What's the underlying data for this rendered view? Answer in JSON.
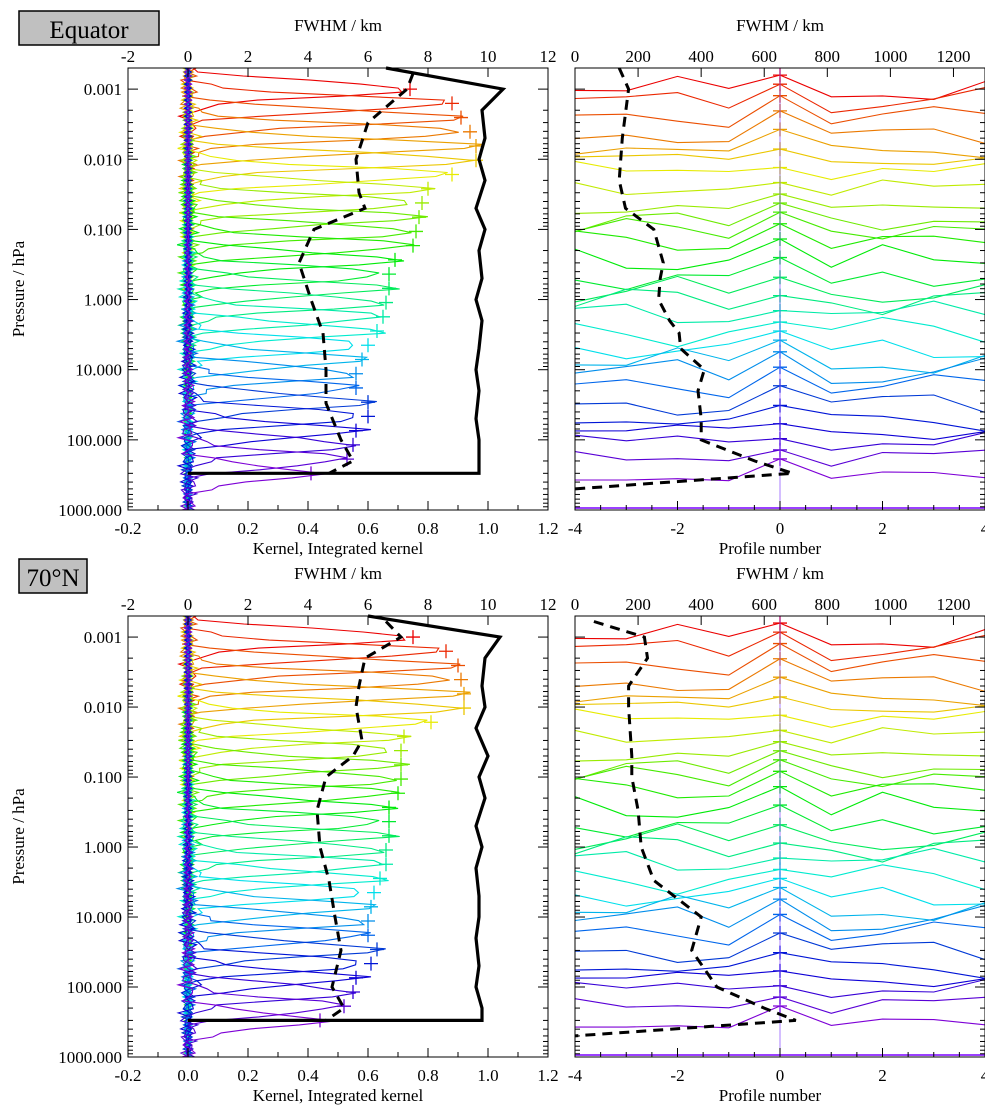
{
  "chart_data": [
    {
      "type": "line",
      "panel": "left",
      "region_label": "Equator",
      "xlabel": "Kernel, Integrated kernel",
      "x2label": "FWHM / km",
      "ylabel": "Pressure / hPa",
      "xlim": [
        -0.2,
        1.2
      ],
      "x2lim": [
        -2,
        12
      ],
      "ylim": [
        1000,
        0.0005
      ],
      "yscale": "log",
      "xticks": [
        "-0.2",
        "0.0",
        "0.2",
        "0.4",
        "0.6",
        "0.8",
        "1.0",
        "1.2"
      ],
      "x2ticks": [
        "-2",
        "0",
        "2",
        "4",
        "6",
        "8",
        "10",
        "12"
      ],
      "yticks": [
        "0.001",
        "0.010",
        "0.100",
        "1.000",
        "10.000",
        "100.000",
        "1000.000"
      ],
      "kernel_levels": {
        "count": 28,
        "p_top": 0.001,
        "p_bottom": 300
      },
      "kernel_peaks": [
        0.74,
        0.88,
        0.91,
        0.94,
        0.96,
        0.96,
        0.88,
        0.8,
        0.78,
        0.77,
        0.76,
        0.75,
        0.69,
        0.67,
        0.67,
        0.66,
        0.65,
        0.63,
        0.6,
        0.58,
        0.56,
        0.56,
        0.6,
        0.6,
        0.56,
        0.55,
        0.53,
        0.41
      ],
      "integrated_kernel": {
        "pressure": [
          0.0005,
          0.001,
          0.002,
          0.005,
          0.01,
          0.02,
          0.05,
          0.1,
          0.2,
          0.5,
          1,
          2,
          5,
          10,
          20,
          50,
          100,
          200,
          300,
          300
        ],
        "value": [
          0.66,
          1.05,
          0.98,
          0.99,
          0.97,
          0.99,
          0.96,
          0.99,
          0.97,
          0.98,
          0.96,
          0.98,
          0.97,
          0.96,
          0.97,
          0.96,
          0.97,
          0.97,
          0.97,
          0.0
        ]
      },
      "fwhm": {
        "pressure": [
          0.0006,
          0.001,
          0.003,
          0.01,
          0.03,
          0.05,
          0.1,
          0.3,
          1,
          3,
          10,
          30,
          100,
          200,
          300
        ],
        "value": [
          7.5,
          7.3,
          6.0,
          5.6,
          5.7,
          5.9,
          4.2,
          3.7,
          4.1,
          4.5,
          4.6,
          4.6,
          5.1,
          5.5,
          4.7
        ]
      }
    },
    {
      "type": "line",
      "panel": "right",
      "region_label": "Equator",
      "xlabel": "Profile number",
      "x2label": "FWHM / km",
      "xlim": [
        -4,
        4
      ],
      "x2lim": [
        0,
        1300
      ],
      "ylim": [
        1000,
        0.0005
      ],
      "yscale": "log",
      "xticks": [
        "-4",
        "-2",
        "0",
        "2",
        "4"
      ],
      "x2ticks": [
        "0",
        "200",
        "400",
        "600",
        "800",
        "1000",
        "1200"
      ],
      "row_count": 28,
      "horizontal_fwhm": {
        "pressure": [
          0.0005,
          0.001,
          0.005,
          0.02,
          0.05,
          0.1,
          0.3,
          0.5,
          1,
          2,
          3,
          5,
          10,
          20,
          50,
          100,
          200,
          300,
          500
        ],
        "value": [
          140,
          170,
          150,
          140,
          160,
          250,
          280,
          270,
          265,
          300,
          330,
          335,
          410,
          390,
          400,
          400,
          570,
          690,
          0
        ]
      }
    },
    {
      "type": "line",
      "panel": "left",
      "region_label": "70°N",
      "xlabel": "Kernel, Integrated kernel",
      "x2label": "FWHM / km",
      "ylabel": "Pressure / hPa",
      "xlim": [
        -0.2,
        1.2
      ],
      "x2lim": [
        -2,
        12
      ],
      "ylim": [
        1000,
        0.0005
      ],
      "yscale": "log",
      "xticks": [
        "-0.2",
        "0.0",
        "0.2",
        "0.4",
        "0.6",
        "0.8",
        "1.0",
        "1.2"
      ],
      "x2ticks": [
        "-2",
        "0",
        "2",
        "4",
        "6",
        "8",
        "10",
        "12"
      ],
      "yticks": [
        "0.001",
        "0.010",
        "0.100",
        "1.000",
        "10.000",
        "100.000",
        "1000.000"
      ],
      "kernel_levels": {
        "count": 28,
        "p_top": 0.001,
        "p_bottom": 300
      },
      "kernel_peaks": [
        0.75,
        0.86,
        0.9,
        0.91,
        0.92,
        0.92,
        0.81,
        0.72,
        0.71,
        0.71,
        0.71,
        0.7,
        0.67,
        0.67,
        0.67,
        0.66,
        0.66,
        0.64,
        0.62,
        0.61,
        0.6,
        0.6,
        0.63,
        0.61,
        0.56,
        0.55,
        0.52,
        0.44
      ],
      "integrated_kernel": {
        "pressure": [
          0.0005,
          0.001,
          0.002,
          0.005,
          0.01,
          0.02,
          0.05,
          0.1,
          0.2,
          0.5,
          1,
          2,
          5,
          10,
          20,
          50,
          100,
          200,
          300,
          300
        ],
        "value": [
          0.6,
          1.04,
          0.99,
          0.98,
          0.99,
          0.96,
          1.0,
          0.97,
          0.99,
          0.96,
          0.98,
          0.96,
          0.97,
          0.97,
          0.96,
          0.97,
          0.96,
          0.98,
          0.98,
          0.0
        ]
      },
      "fwhm": {
        "pressure": [
          0.0006,
          0.001,
          0.002,
          0.005,
          0.01,
          0.03,
          0.05,
          0.1,
          0.3,
          1,
          3,
          10,
          30,
          100,
          200,
          300
        ],
        "value": [
          6.6,
          7.1,
          5.9,
          5.7,
          5.6,
          5.8,
          5.5,
          4.6,
          4.3,
          4.4,
          4.7,
          4.9,
          5.1,
          4.8,
          5.2,
          4.6
        ]
      }
    },
    {
      "type": "line",
      "panel": "right",
      "region_label": "70°N",
      "xlabel": "Profile number",
      "x2label": "FWHM / km",
      "xlim": [
        -4,
        4
      ],
      "x2lim": [
        0,
        1300
      ],
      "ylim": [
        1000,
        0.0005
      ],
      "yscale": "log",
      "xticks": [
        "-4",
        "-2",
        "0",
        "2",
        "4"
      ],
      "x2ticks": [
        "0",
        "200",
        "400",
        "600",
        "800",
        "1000",
        "1200"
      ],
      "row_count": 28,
      "horizontal_fwhm": {
        "pressure": [
          0.0006,
          0.001,
          0.002,
          0.005,
          0.01,
          0.05,
          0.1,
          0.3,
          1,
          3,
          10,
          30,
          100,
          200,
          300,
          500
        ],
        "value": [
          60,
          220,
          230,
          170,
          170,
          180,
          180,
          200,
          210,
          250,
          400,
          370,
          450,
          600,
          700,
          0
        ]
      }
    }
  ]
}
